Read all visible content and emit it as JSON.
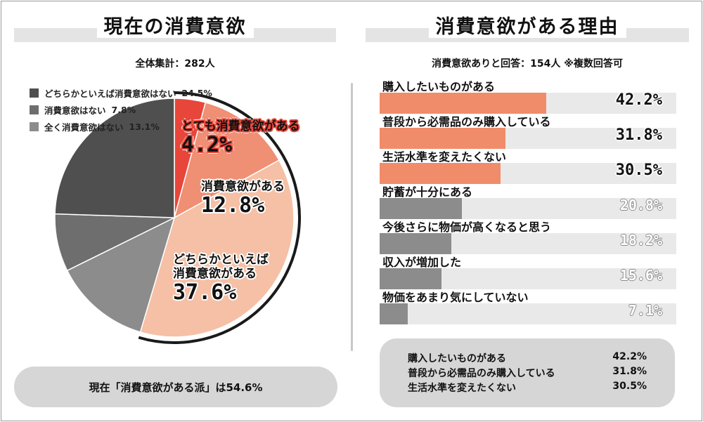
{
  "left_panel": {
    "title": "現在の消費意欲",
    "subtitle": "全体集計：282人",
    "summary": "現在「消費意欲がある派」は54.6%"
  },
  "right_panel": {
    "title": "消費意欲がある理由",
    "subtitle": "消費意欲ありと回答：154人 ※複数回答可",
    "summary": [
      {
        "label": "購入したいものがある",
        "value": "42.2%"
      },
      {
        "label": "普段から必需品のみ購入している",
        "value": "31.8%"
      },
      {
        "label": "生活水準を変えたくない",
        "value": "30.5%"
      }
    ]
  },
  "chart_data": [
    {
      "type": "pie",
      "title": "現在の消費意欲",
      "slices": [
        {
          "label": "とても消費意欲がある",
          "value": 4.2,
          "display": "4.2%",
          "color": "#e8463a",
          "text": "とても消費意欲がある"
        },
        {
          "label": "消費意欲がある",
          "value": 12.8,
          "display": "12.8%",
          "color": "#ef8f74",
          "text": "消費意欲がある"
        },
        {
          "label": "どちらかといえば消費意欲がある",
          "value": 37.6,
          "display": "37.6%",
          "color": "#f5c0a5",
          "text_line1": "どちらかといえば",
          "text_line2": "消費意欲がある"
        },
        {
          "label": "全く消費意欲はない",
          "value": 13.1,
          "display": "13.1%",
          "color": "#8c8c8c",
          "legend": "全く消費意欲はない"
        },
        {
          "label": "消費意欲はない",
          "value": 7.8,
          "display": "7.8%",
          "color": "#6e6e6e",
          "legend": "消費意欲はない"
        },
        {
          "label": "どちらかといえば消費意欲はない",
          "value": 24.5,
          "display": "24.5%",
          "color": "#4f4f4f",
          "legend": "どちらかといえば消費意欲はない"
        }
      ]
    },
    {
      "type": "bar",
      "orientation": "horizontal",
      "title": "消費意欲がある理由",
      "categories": [
        "購入したいものがある",
        "普段から必需品のみ購入している",
        "生活水準を変えたくない",
        "貯蓄が十分にある",
        "今後さらに物価が高くなると思う",
        "収入が増加した",
        "物価をあまり気にしていない"
      ],
      "values": [
        42.2,
        31.8,
        30.5,
        20.8,
        18.2,
        15.6,
        7.1
      ],
      "labels": [
        "42.2%",
        "31.8%",
        "30.5%",
        "20.8%",
        "18.2%",
        "15.6%",
        "7.1%"
      ],
      "xlim": [
        0,
        75
      ],
      "colors": {
        "top": "#f08c6a",
        "rest": "#8c8c8c",
        "track": "#e9e9e9"
      }
    }
  ]
}
